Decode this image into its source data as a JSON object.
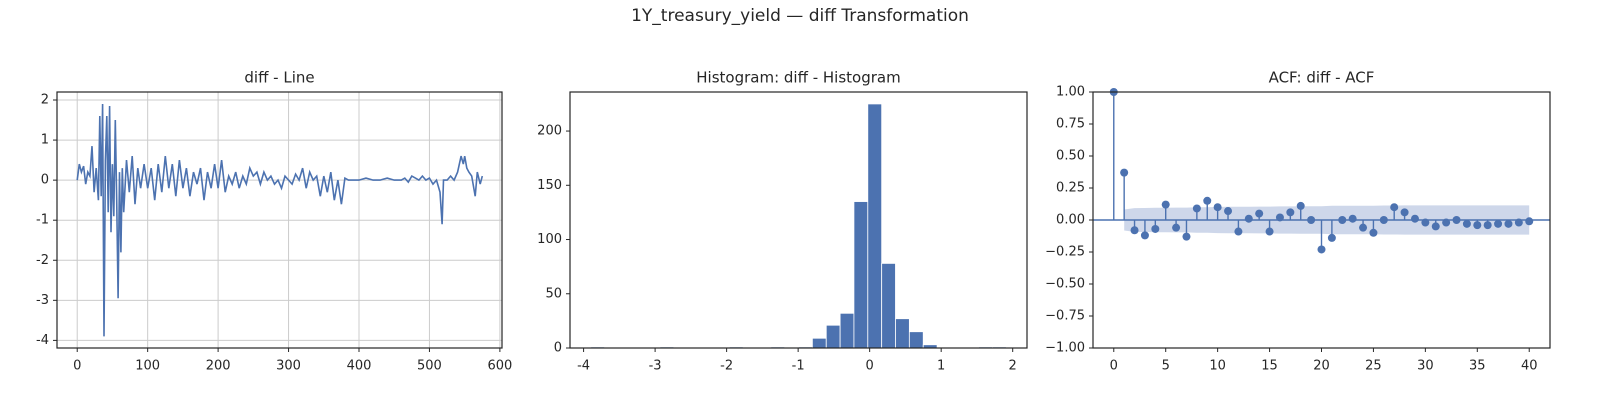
{
  "title": "1Y_treasury_yield — diff Transformation",
  "chart_data": [
    {
      "type": "line",
      "title": "diff - Line",
      "color": "#4c72b0",
      "grid": true,
      "x": [
        0,
        3,
        6,
        9,
        12,
        15,
        18,
        21,
        24,
        27,
        30,
        32,
        34,
        36,
        38,
        40,
        42,
        44,
        46,
        48,
        50,
        52,
        54,
        56,
        58,
        60,
        62,
        64,
        66,
        70,
        74,
        78,
        82,
        86,
        90,
        95,
        100,
        105,
        110,
        115,
        120,
        125,
        130,
        135,
        140,
        145,
        150,
        155,
        160,
        165,
        170,
        175,
        180,
        185,
        190,
        195,
        200,
        205,
        210,
        215,
        220,
        225,
        230,
        235,
        240,
        245,
        250,
        255,
        260,
        265,
        270,
        275,
        280,
        285,
        290,
        295,
        300,
        305,
        310,
        315,
        320,
        325,
        330,
        335,
        340,
        345,
        350,
        355,
        360,
        365,
        370,
        375,
        380,
        385,
        390,
        400,
        410,
        420,
        430,
        440,
        450,
        460,
        465,
        470,
        475,
        480,
        485,
        490,
        495,
        500,
        505,
        510,
        515,
        518,
        520,
        525,
        530,
        535,
        540,
        545,
        548,
        550,
        553,
        556,
        560,
        565,
        568,
        572,
        575
      ],
      "values": [
        0,
        0.4,
        0.2,
        0.35,
        -0.1,
        0.2,
        0.1,
        0.85,
        -0.3,
        0.3,
        -0.5,
        1.6,
        -0.4,
        1.9,
        -3.9,
        0.5,
        1.6,
        -0.8,
        1.85,
        -1.3,
        0.4,
        -0.9,
        1.5,
        -0.5,
        -2.95,
        0.2,
        -1.8,
        0.3,
        -0.8,
        0.5,
        -0.3,
        0.6,
        -0.6,
        0.3,
        -0.2,
        0.4,
        -0.2,
        0.3,
        -0.5,
        0.4,
        -0.3,
        0.6,
        -0.2,
        0.4,
        -0.4,
        0.5,
        -0.2,
        0.3,
        -0.4,
        0.2,
        -0.1,
        0.3,
        -0.5,
        0.2,
        -0.2,
        0.4,
        -0.2,
        0.5,
        -0.3,
        0.1,
        -0.1,
        0.2,
        -0.2,
        0.1,
        -0.1,
        0.3,
        0.1,
        0.2,
        -0.1,
        0.2,
        0,
        0.1,
        -0.1,
        0,
        -0.2,
        0.1,
        0,
        -0.1,
        0.15,
        0,
        0.3,
        -0.2,
        0.2,
        0,
        0.1,
        -0.4,
        0.1,
        -0.3,
        0.2,
        -0.5,
        0,
        -0.6,
        0.05,
        0,
        0,
        0,
        0.05,
        0,
        0,
        0.05,
        0,
        0,
        0.05,
        -0.05,
        0.1,
        0.05,
        0,
        0.1,
        0,
        0.05,
        -0.1,
        0,
        -0.3,
        -1.1,
        0,
        0,
        0.1,
        0,
        0.2,
        0.6,
        0.4,
        0.6,
        0.3,
        0.2,
        0.1,
        -0.4,
        0.2,
        -0.1,
        0.1
      ],
      "xlim": [
        -28.7,
        603
      ],
      "xticks": [
        0,
        100,
        200,
        300,
        400,
        500,
        600
      ],
      "ylim": [
        -4.19,
        2.2
      ],
      "yticks": [
        -4,
        -3,
        -2,
        -1,
        0,
        1,
        2
      ]
    },
    {
      "type": "histogram",
      "title": "Histogram: diff - Histogram",
      "color": "#4c72b0",
      "grid": false,
      "bins": [
        -3.9,
        -3.706,
        -3.513,
        -3.319,
        -3.125,
        -2.932,
        -2.738,
        -2.544,
        -2.35,
        -2.157,
        -1.963,
        -1.769,
        -1.576,
        -1.382,
        -1.188,
        -0.995,
        -0.801,
        -0.607,
        -0.413,
        -0.22,
        -0.026,
        0.168,
        0.361,
        0.555,
        0.749,
        0.943,
        1.136,
        1.33,
        1.524,
        1.717,
        1.911
      ],
      "values": [
        1,
        0,
        0,
        0,
        0,
        1,
        0,
        0,
        0,
        0,
        1,
        0,
        0,
        1,
        0,
        1,
        9,
        21,
        32,
        135,
        225,
        78,
        27,
        15,
        3,
        0,
        0,
        0,
        1,
        1
      ],
      "xlim": [
        -4.19,
        2.2
      ],
      "xticks": [
        -4,
        -3,
        -2,
        -1,
        0,
        1,
        2
      ],
      "ylim": [
        0,
        236
      ],
      "yticks": [
        0,
        50,
        100,
        150,
        200
      ]
    },
    {
      "type": "acf",
      "title": "ACF: diff - ACF",
      "color": "#4c72b0",
      "band_color": "#c5d0e6",
      "grid": false,
      "x": [
        0,
        1,
        2,
        3,
        4,
        5,
        6,
        7,
        8,
        9,
        10,
        11,
        12,
        13,
        14,
        15,
        16,
        17,
        18,
        19,
        20,
        21,
        22,
        23,
        24,
        25,
        26,
        27,
        28,
        29,
        30,
        31,
        32,
        33,
        34,
        35,
        36,
        37,
        38,
        39,
        40
      ],
      "values": [
        1,
        0.37,
        -0.08,
        -0.12,
        -0.07,
        0.12,
        -0.06,
        -0.13,
        0.09,
        0.15,
        0.1,
        0.07,
        -0.09,
        0.01,
        0.05,
        -0.09,
        0.02,
        0.06,
        0.11,
        0,
        -0.23,
        -0.14,
        0,
        0.01,
        -0.06,
        -0.1,
        0,
        0.1,
        0.06,
        0.01,
        -0.02,
        -0.05,
        -0.02,
        0,
        -0.03,
        -0.04,
        -0.04,
        -0.03,
        -0.03,
        -0.02,
        -0.01
      ],
      "confidence": [
        null,
        0.082,
        0.093,
        0.094,
        0.095,
        0.095,
        0.097,
        0.097,
        0.099,
        0.099,
        0.102,
        0.103,
        0.104,
        0.104,
        0.105,
        0.105,
        0.106,
        0.106,
        0.107,
        0.108,
        0.108,
        0.111,
        0.112,
        0.112,
        0.112,
        0.112,
        0.113,
        0.113,
        0.114,
        0.114,
        0.114,
        0.114,
        0.114,
        0.114,
        0.114,
        0.114,
        0.114,
        0.114,
        0.114,
        0.114,
        0.114
      ],
      "xlim": [
        -2,
        42
      ],
      "xticks": [
        0,
        5,
        10,
        15,
        20,
        25,
        30,
        35,
        40
      ],
      "ylim": [
        -1,
        1
      ],
      "yticks": [
        {
          "value": -1,
          "label": "−1.00"
        },
        {
          "value": -0.75,
          "label": "−0.75"
        },
        {
          "value": -0.5,
          "label": "−0.50"
        },
        {
          "value": -0.25,
          "label": "−0.25"
        },
        {
          "value": 0,
          "label": "0.00"
        },
        {
          "value": 0.25,
          "label": "0.25"
        },
        {
          "value": 0.5,
          "label": "0.50"
        },
        {
          "value": 0.75,
          "label": "0.75"
        },
        {
          "value": 1,
          "label": "1.00"
        }
      ]
    }
  ]
}
